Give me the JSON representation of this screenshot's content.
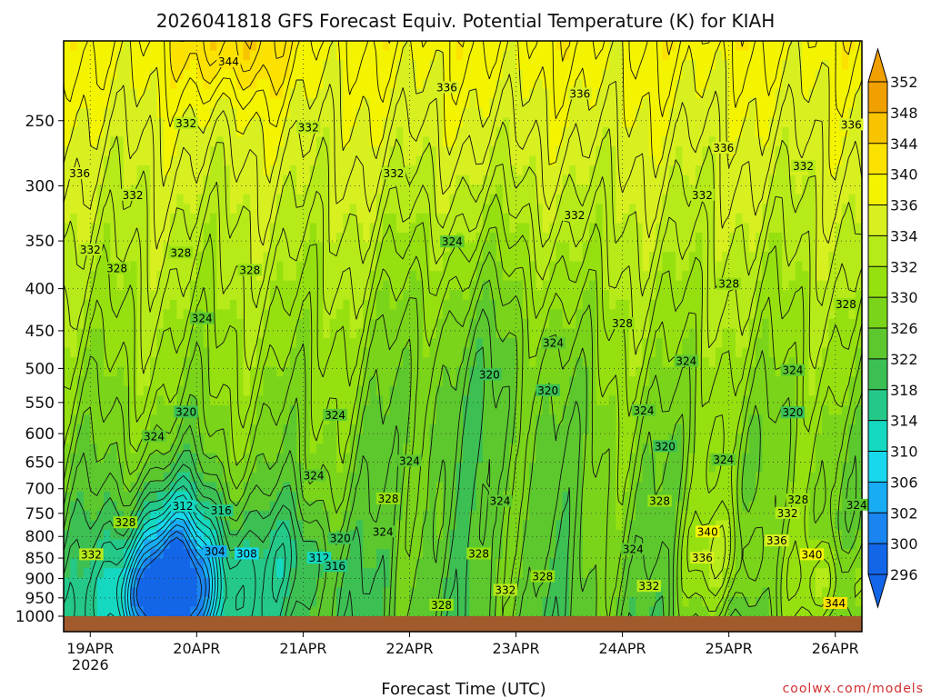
{
  "chart_data": {
    "type": "heatmap",
    "title": "2026041818 GFS Forecast Equiv. Potential Temperature (K) for KIAH",
    "xlabel": "Forecast Time (UTC)",
    "ylabel": "",
    "watermark": "coolwx.com/models",
    "x_ticks": [
      {
        "label": "19APR",
        "sublabel": "2026",
        "t": 0.25
      },
      {
        "label": "20APR",
        "sublabel": "",
        "t": 1.25
      },
      {
        "label": "21APR",
        "sublabel": "",
        "t": 2.25
      },
      {
        "label": "22APR",
        "sublabel": "",
        "t": 3.25
      },
      {
        "label": "23APR",
        "sublabel": "",
        "t": 4.25
      },
      {
        "label": "24APR",
        "sublabel": "",
        "t": 5.25
      },
      {
        "label": "25APR",
        "sublabel": "",
        "t": 6.25
      },
      {
        "label": "26APR",
        "sublabel": "",
        "t": 7.25
      }
    ],
    "x_range_days": [
      0,
      7.5
    ],
    "y_axis": {
      "units": "hPa",
      "scale": "log",
      "inverted": true,
      "range": [
        1000,
        200
      ],
      "ticks": [
        250,
        300,
        350,
        400,
        450,
        500,
        550,
        600,
        650,
        700,
        750,
        800,
        850,
        900,
        950,
        1000
      ]
    },
    "colorbar": {
      "labels": [
        352,
        348,
        344,
        340,
        336,
        334,
        332,
        330,
        326,
        322,
        318,
        314,
        310,
        306,
        302,
        300,
        296
      ],
      "colors": [
        "#f0a000",
        "#f8c400",
        "#fce200",
        "#f4f400",
        "#d8f020",
        "#b6ea18",
        "#96e010",
        "#7ad41a",
        "#5cc82e",
        "#3cc054",
        "#24c888",
        "#14d8c0",
        "#18d8ee",
        "#18acf4",
        "#1a84f0",
        "#1466e8"
      ],
      "extend": "both"
    },
    "contour_labels": [
      {
        "text": "344",
        "t": 1.55,
        "p": 212
      },
      {
        "text": "336",
        "t": 3.6,
        "p": 228
      },
      {
        "text": "336",
        "t": 4.85,
        "p": 232
      },
      {
        "text": "332",
        "t": 1.15,
        "p": 252
      },
      {
        "text": "332",
        "t": 2.3,
        "p": 255
      },
      {
        "text": "336",
        "t": 7.4,
        "p": 253
      },
      {
        "text": "336",
        "t": 6.2,
        "p": 270
      },
      {
        "text": "332",
        "t": 6.95,
        "p": 284
      },
      {
        "text": "336",
        "t": 0.15,
        "p": 290
      },
      {
        "text": "332",
        "t": 3.1,
        "p": 290
      },
      {
        "text": "332",
        "t": 0.65,
        "p": 308
      },
      {
        "text": "332",
        "t": 6.0,
        "p": 308
      },
      {
        "text": "332",
        "t": 4.8,
        "p": 326
      },
      {
        "text": "324",
        "t": 3.65,
        "p": 351
      },
      {
        "text": "332",
        "t": 0.25,
        "p": 359
      },
      {
        "text": "328",
        "t": 1.1,
        "p": 362
      },
      {
        "text": "328",
        "t": 0.5,
        "p": 378
      },
      {
        "text": "328",
        "t": 1.75,
        "p": 380
      },
      {
        "text": "328",
        "t": 6.25,
        "p": 395
      },
      {
        "text": "328",
        "t": 7.35,
        "p": 418
      },
      {
        "text": "324",
        "t": 1.3,
        "p": 435
      },
      {
        "text": "328",
        "t": 5.25,
        "p": 441
      },
      {
        "text": "324",
        "t": 4.6,
        "p": 466
      },
      {
        "text": "324",
        "t": 5.85,
        "p": 490
      },
      {
        "text": "324",
        "t": 6.85,
        "p": 503
      },
      {
        "text": "320",
        "t": 4.0,
        "p": 509
      },
      {
        "text": "320",
        "t": 4.55,
        "p": 532
      },
      {
        "text": "320",
        "t": 1.15,
        "p": 565
      },
      {
        "text": "324",
        "t": 2.55,
        "p": 570
      },
      {
        "text": "324",
        "t": 5.45,
        "p": 563
      },
      {
        "text": "320",
        "t": 6.85,
        "p": 566
      },
      {
        "text": "324",
        "t": 0.85,
        "p": 605
      },
      {
        "text": "320",
        "t": 5.65,
        "p": 622
      },
      {
        "text": "324",
        "t": 3.25,
        "p": 648
      },
      {
        "text": "324",
        "t": 6.2,
        "p": 646
      },
      {
        "text": "324",
        "t": 2.35,
        "p": 675
      },
      {
        "text": "328",
        "t": 3.05,
        "p": 720
      },
      {
        "text": "324",
        "t": 4.1,
        "p": 725
      },
      {
        "text": "328",
        "t": 5.6,
        "p": 725
      },
      {
        "text": "328",
        "t": 6.9,
        "p": 722
      },
      {
        "text": "324",
        "t": 7.45,
        "p": 733
      },
      {
        "text": "312",
        "t": 1.12,
        "p": 735
      },
      {
        "text": "316",
        "t": 1.48,
        "p": 745
      },
      {
        "text": "332",
        "t": 6.8,
        "p": 750
      },
      {
        "text": "328",
        "t": 0.58,
        "p": 770
      },
      {
        "text": "324",
        "t": 3.0,
        "p": 790
      },
      {
        "text": "340",
        "t": 6.05,
        "p": 790
      },
      {
        "text": "320",
        "t": 2.6,
        "p": 805
      },
      {
        "text": "336",
        "t": 6.7,
        "p": 810
      },
      {
        "text": "304",
        "t": 1.42,
        "p": 835
      },
      {
        "text": "308",
        "t": 1.72,
        "p": 840
      },
      {
        "text": "324",
        "t": 5.35,
        "p": 830
      },
      {
        "text": "328",
        "t": 3.9,
        "p": 840
      },
      {
        "text": "340",
        "t": 7.03,
        "p": 842
      },
      {
        "text": "332",
        "t": 0.26,
        "p": 842
      },
      {
        "text": "312",
        "t": 2.4,
        "p": 850
      },
      {
        "text": "336",
        "t": 6.0,
        "p": 850
      },
      {
        "text": "316",
        "t": 2.55,
        "p": 870
      },
      {
        "text": "328",
        "t": 4.5,
        "p": 895
      },
      {
        "text": "332",
        "t": 4.15,
        "p": 930
      },
      {
        "text": "332",
        "t": 5.5,
        "p": 920
      },
      {
        "text": "328",
        "t": 3.55,
        "p": 970
      },
      {
        "text": "344",
        "t": 7.25,
        "p": 965
      }
    ]
  }
}
